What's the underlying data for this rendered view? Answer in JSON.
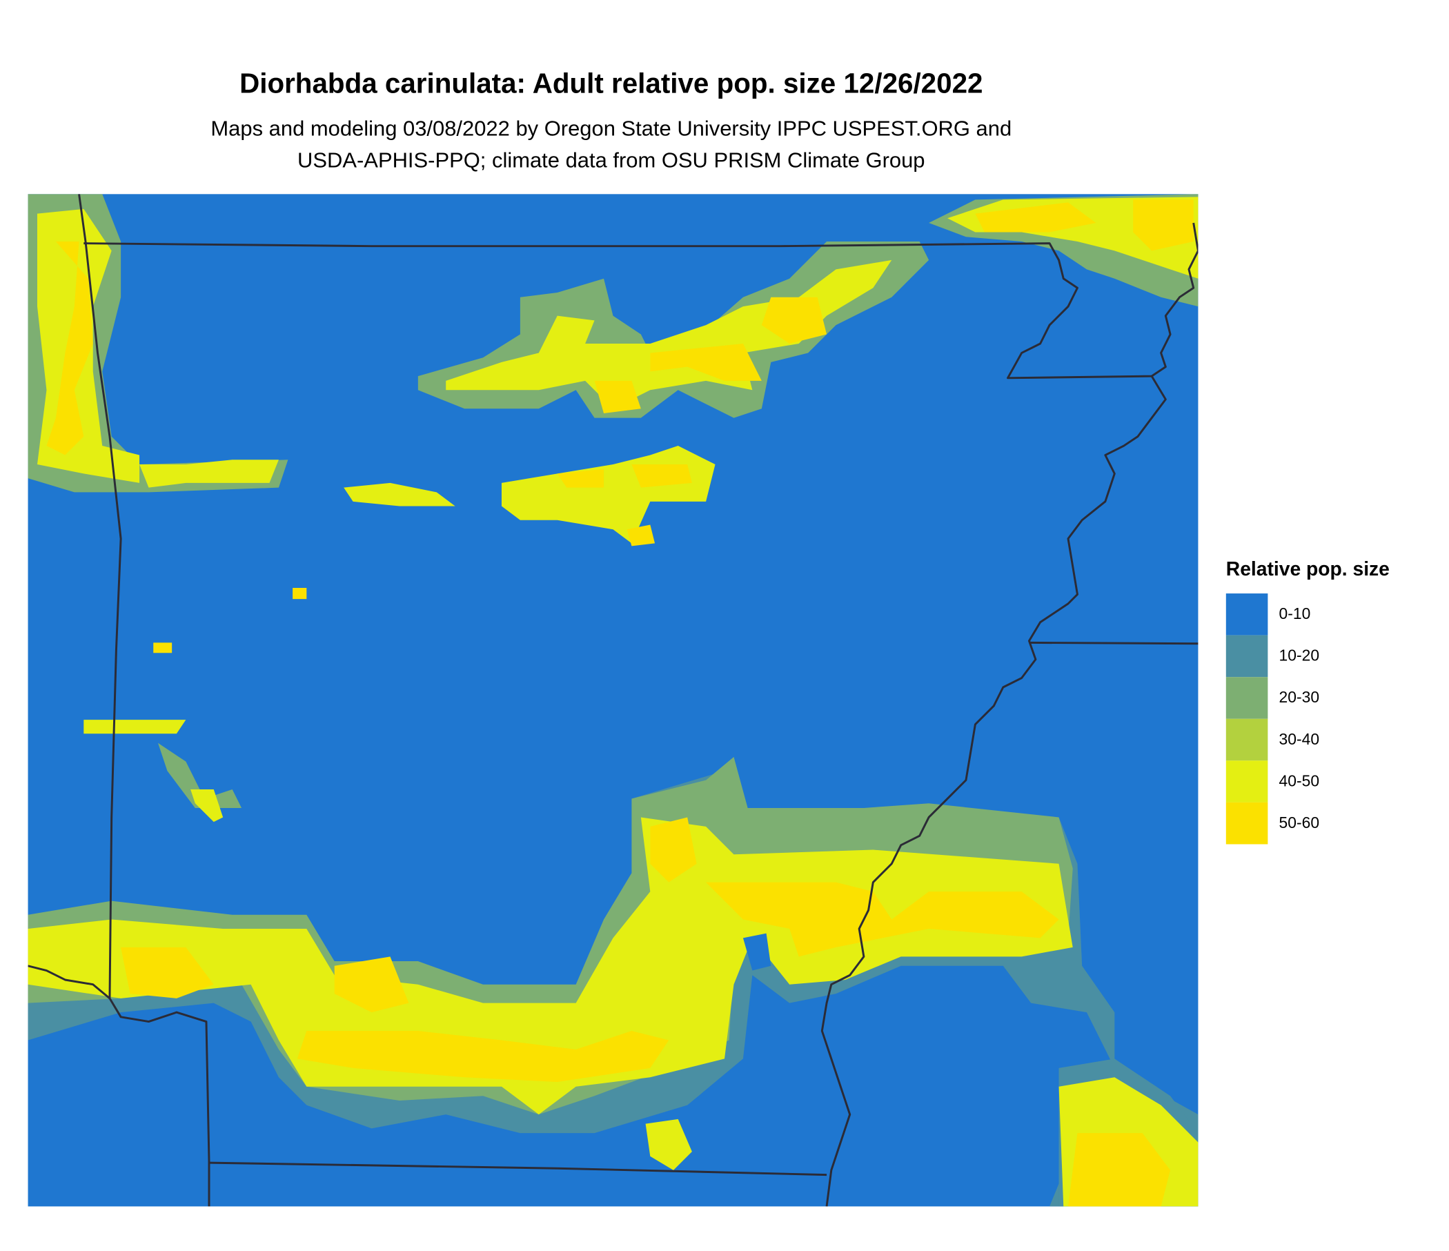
{
  "title": "Diorhabda carinulata: Adult relative pop. size 12/26/2022",
  "subtitle_lines": [
    "Maps and modeling 03/08/2022 by Oregon State University IPPC USPEST.ORG and",
    "USDA-APHIS-PPQ; climate data from OSU PRISM Climate Group"
  ],
  "legend": {
    "title": "Relative pop. size",
    "items": [
      {
        "label": "0-10",
        "color": "#1f77d0"
      },
      {
        "label": "10-20",
        "color": "#4a8fa3"
      },
      {
        "label": "20-30",
        "color": "#7daf72"
      },
      {
        "label": "30-40",
        "color": "#b3d13e"
      },
      {
        "label": "40-50",
        "color": "#e4ef12"
      },
      {
        "label": "50-60",
        "color": "#fbe100"
      }
    ]
  }
}
